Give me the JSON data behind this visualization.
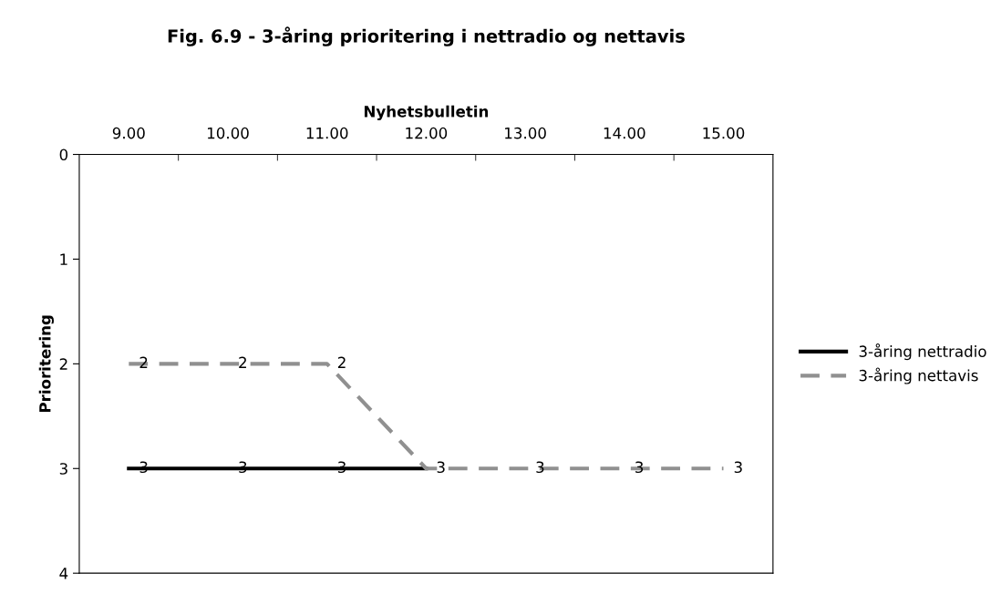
{
  "chart_data": {
    "type": "line",
    "title": "Fig. 6.9 - 3-åring prioritering i nettradio og nettavis",
    "xlabel": "Nyhetsbulletin",
    "ylabel": "Prioritering",
    "categories": [
      "9.00",
      "10.00",
      "11.00",
      "12.00",
      "13.00",
      "14.00",
      "15.00"
    ],
    "series": [
      {
        "name": "3-åring nettradio",
        "color": "#000000",
        "line_style": "solid",
        "values": [
          3,
          3,
          3,
          3,
          null,
          null,
          null
        ],
        "value_labels": [
          "3",
          "3",
          "3",
          null,
          null,
          null,
          null
        ]
      },
      {
        "name": "3-åring nettavis",
        "color": "#909090",
        "line_style": "dashed",
        "values": [
          2,
          2,
          2,
          3,
          3,
          3,
          3
        ],
        "value_labels": [
          "2",
          "2",
          "2",
          "3",
          "3",
          "3",
          "3"
        ]
      }
    ],
    "ylim": [
      4,
      0
    ],
    "yticks": [
      0,
      1,
      2,
      3,
      4
    ],
    "grid": false,
    "legend": "right",
    "marker": "none"
  }
}
